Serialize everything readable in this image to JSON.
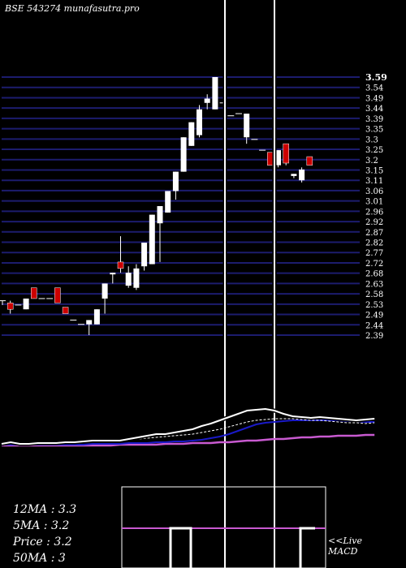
{
  "header": {
    "title": "BSE 543274  munafasutra.pro"
  },
  "stats": {
    "ma12": "12MA : 3.3",
    "ma5": "5MA : 3.2",
    "price": "Price   : 3.2",
    "ma50": "50MA : 3"
  },
  "macd": {
    "live": "<<Live",
    "label": "MACD"
  },
  "colors": {
    "background": "#000000",
    "grid": "#1c1c6e",
    "up": "#ffffff",
    "down": "#cc0000",
    "ma_white": "#ffffff",
    "ma_blue": "#1a1ac8",
    "ma_magenta": "#c85ad0"
  },
  "chart_data": {
    "type": "candlestick",
    "title": "BSE 543274  munafasutra.pro",
    "y_ticks": [
      "3.59",
      "3.54",
      "3.49",
      "3.44",
      "3.39",
      "3.35",
      "3.3",
      "3.25",
      "3.2",
      "3.15",
      "3.11",
      "3.06",
      "3.01",
      "2.96",
      "2.92",
      "2.87",
      "2.82",
      "2.77",
      "2.72",
      "2.68",
      "2.63",
      "2.58",
      "2.53",
      "2.49",
      "2.44",
      "2.39"
    ],
    "ylim": [
      2.39,
      3.59
    ],
    "candles": [
      {
        "o": 2.55,
        "h": 2.55,
        "l": 2.53,
        "c": 2.55,
        "dir": "flat"
      },
      {
        "o": 2.54,
        "h": 2.55,
        "l": 2.49,
        "c": 2.51,
        "dir": "down"
      },
      {
        "o": 2.53,
        "h": 2.53,
        "l": 2.53,
        "c": 2.53,
        "dir": "flat"
      },
      {
        "o": 2.51,
        "h": 2.56,
        "l": 2.51,
        "c": 2.56,
        "dir": "up"
      },
      {
        "o": 2.61,
        "h": 2.61,
        "l": 2.56,
        "c": 2.56,
        "dir": "down"
      },
      {
        "o": 2.56,
        "h": 2.56,
        "l": 2.56,
        "c": 2.56,
        "dir": "flat"
      },
      {
        "o": 2.56,
        "h": 2.56,
        "l": 2.56,
        "c": 2.56,
        "dir": "flat"
      },
      {
        "o": 2.61,
        "h": 2.61,
        "l": 2.54,
        "c": 2.54,
        "dir": "down"
      },
      {
        "o": 2.52,
        "h": 2.52,
        "l": 2.49,
        "c": 2.49,
        "dir": "down"
      },
      {
        "o": 2.46,
        "h": 2.46,
        "l": 2.46,
        "c": 2.46,
        "dir": "flat"
      },
      {
        "o": 2.44,
        "h": 2.44,
        "l": 2.44,
        "c": 2.44,
        "dir": "flat"
      },
      {
        "o": 2.44,
        "h": 2.46,
        "l": 2.39,
        "c": 2.46,
        "dir": "up"
      },
      {
        "o": 2.44,
        "h": 2.51,
        "l": 2.44,
        "c": 2.51,
        "dir": "up"
      },
      {
        "o": 2.56,
        "h": 2.63,
        "l": 2.49,
        "c": 2.63,
        "dir": "up"
      },
      {
        "o": 2.68,
        "h": 2.68,
        "l": 2.63,
        "c": 2.68,
        "dir": "up"
      },
      {
        "o": 2.73,
        "h": 2.85,
        "l": 2.68,
        "c": 2.7,
        "dir": "down"
      },
      {
        "o": 2.68,
        "h": 2.71,
        "l": 2.61,
        "c": 2.62,
        "dir": "up"
      },
      {
        "o": 2.61,
        "h": 2.72,
        "l": 2.6,
        "c": 2.7,
        "dir": "up"
      },
      {
        "o": 2.71,
        "h": 2.82,
        "l": 2.69,
        "c": 2.82,
        "dir": "up"
      },
      {
        "o": 2.72,
        "h": 2.95,
        "l": 2.72,
        "c": 2.95,
        "dir": "up"
      },
      {
        "o": 2.91,
        "h": 2.99,
        "l": 2.73,
        "c": 2.99,
        "dir": "up"
      },
      {
        "o": 2.96,
        "h": 3.06,
        "l": 2.96,
        "c": 3.06,
        "dir": "up"
      },
      {
        "o": 3.06,
        "h": 3.15,
        "l": 3.02,
        "c": 3.15,
        "dir": "up"
      },
      {
        "o": 3.15,
        "h": 3.31,
        "l": 3.15,
        "c": 3.31,
        "dir": "up"
      },
      {
        "o": 3.27,
        "h": 3.38,
        "l": 3.27,
        "c": 3.38,
        "dir": "up"
      },
      {
        "o": 3.32,
        "h": 3.46,
        "l": 3.31,
        "c": 3.44,
        "dir": "up"
      },
      {
        "o": 3.47,
        "h": 3.51,
        "l": 3.44,
        "c": 3.49,
        "dir": "up"
      },
      {
        "o": 3.44,
        "h": 3.59,
        "l": 3.44,
        "c": 3.59,
        "dir": "up"
      },
      {
        "o": 3.47,
        "h": 3.47,
        "l": 3.47,
        "c": 3.47,
        "dir": "flat"
      },
      {
        "o": 3.41,
        "h": 3.41,
        "l": 3.41,
        "c": 3.41,
        "dir": "flat"
      },
      {
        "o": 3.42,
        "h": 3.42,
        "l": 3.42,
        "c": 3.42,
        "dir": "flat"
      },
      {
        "o": 3.42,
        "h": 3.42,
        "l": 3.28,
        "c": 3.31,
        "dir": "up"
      },
      {
        "o": 3.3,
        "h": 3.3,
        "l": 3.3,
        "c": 3.3,
        "dir": "flat"
      },
      {
        "o": 3.25,
        "h": 3.25,
        "l": 3.25,
        "c": 3.25,
        "dir": "flat"
      },
      {
        "o": 3.24,
        "h": 3.24,
        "l": 3.18,
        "c": 3.18,
        "dir": "down"
      },
      {
        "o": 3.18,
        "h": 3.25,
        "l": 3.17,
        "c": 3.25,
        "dir": "up"
      },
      {
        "o": 3.28,
        "h": 3.28,
        "l": 3.18,
        "c": 3.19,
        "dir": "down"
      },
      {
        "o": 3.14,
        "h": 3.14,
        "l": 3.12,
        "c": 3.13,
        "dir": "up"
      },
      {
        "o": 3.11,
        "h": 3.17,
        "l": 3.1,
        "c": 3.16,
        "dir": "up"
      },
      {
        "o": 3.22,
        "h": 3.22,
        "l": 3.18,
        "c": 3.18,
        "dir": "down"
      }
    ],
    "ma_panel": {
      "series": [
        {
          "color": "white_black_outline",
          "values": [
            66,
            68,
            66,
            66,
            67,
            67,
            67,
            68,
            68,
            69,
            70,
            70,
            70,
            70,
            72,
            74,
            76,
            78,
            78,
            80,
            82,
            84,
            88,
            91,
            95,
            99,
            103,
            107,
            108,
            109,
            107,
            103,
            100,
            99,
            98,
            99,
            98,
            97,
            96,
            95,
            96,
            97
          ]
        },
        {
          "color": "white_dashed",
          "values": [
            67,
            68,
            67,
            67,
            67,
            67,
            67,
            67,
            68,
            68,
            69,
            69,
            70,
            70,
            71,
            72,
            73,
            74,
            75,
            76,
            77,
            78,
            80,
            82,
            84,
            87,
            90,
            93,
            95,
            96,
            97,
            97,
            97,
            96,
            95,
            95,
            94,
            93,
            92,
            92,
            91,
            92
          ]
        },
        {
          "color": "blue",
          "values": [
            65,
            65,
            65,
            65,
            65,
            65,
            65,
            65,
            65,
            65,
            66,
            66,
            66,
            66,
            67,
            67,
            67,
            68,
            68,
            69,
            69,
            70,
            71,
            73,
            75,
            78,
            82,
            86,
            90,
            92,
            93,
            94,
            95,
            95,
            95,
            95,
            95,
            95,
            94,
            94,
            93,
            93
          ]
        },
        {
          "color": "magenta",
          "values": [
            68,
            68,
            68,
            68,
            68,
            68,
            68,
            68,
            68,
            68,
            68,
            68,
            68,
            69,
            69,
            69,
            69,
            69,
            70,
            70,
            70,
            71,
            71,
            71,
            72,
            72,
            73,
            74,
            74,
            75,
            76,
            76,
            77,
            78,
            78,
            79,
            79,
            80,
            80,
            80,
            81,
            81
          ]
        }
      ]
    }
  }
}
